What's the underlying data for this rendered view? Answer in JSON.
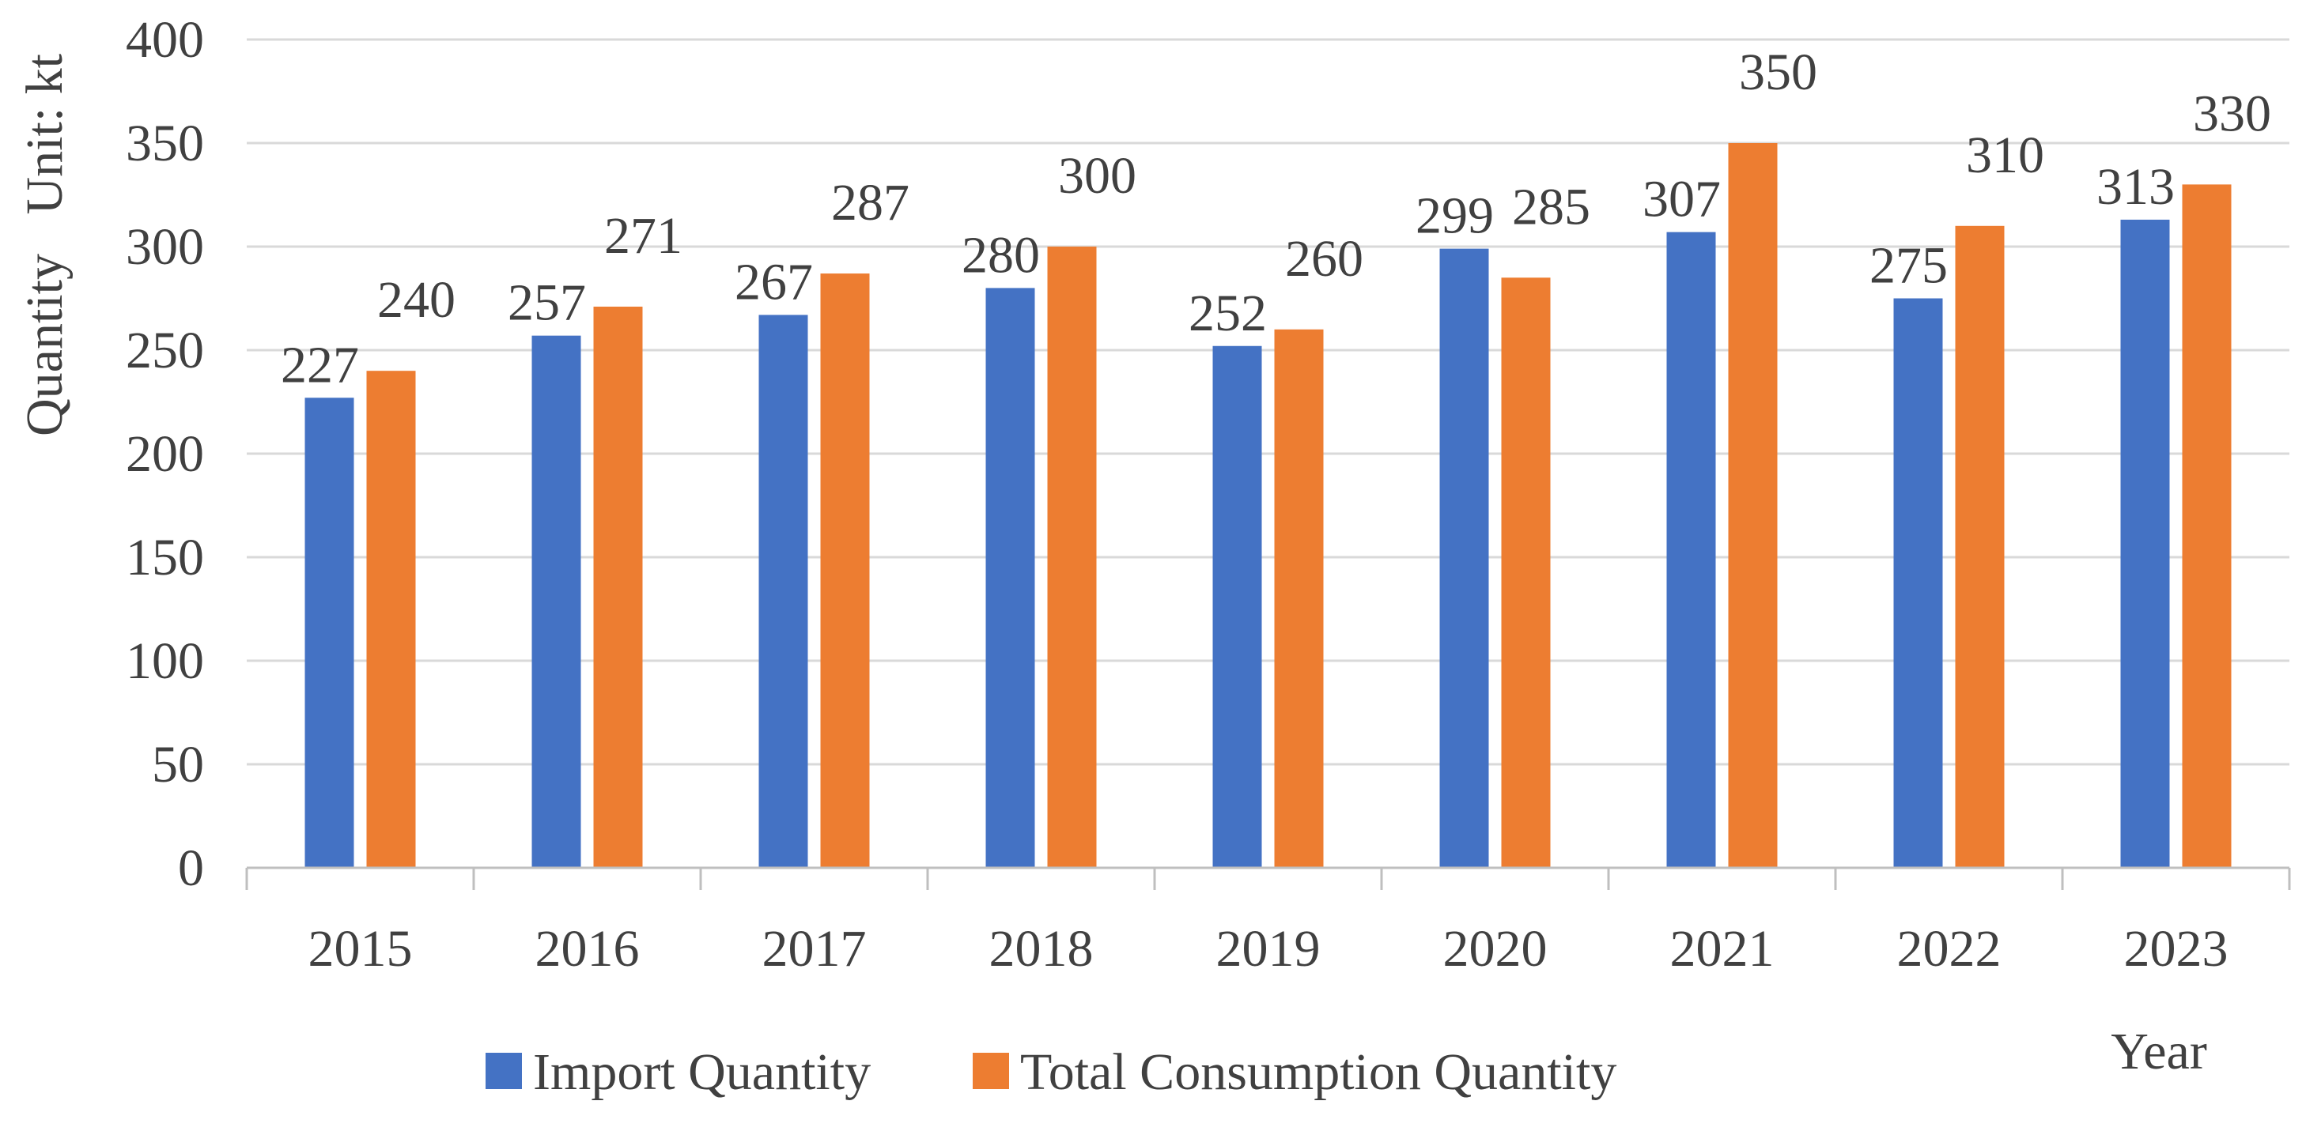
{
  "chart_data": {
    "type": "bar",
    "categories": [
      "2015",
      "2016",
      "2017",
      "2018",
      "2019",
      "2020",
      "2021",
      "2022",
      "2023"
    ],
    "series": [
      {
        "name": "Import Quantity",
        "color": "#4472c4",
        "values": [
          227,
          257,
          267,
          280,
          252,
          299,
          307,
          275,
          313
        ]
      },
      {
        "name": "Total Consumption Quantity",
        "color": "#ed7d31",
        "values": [
          240,
          271,
          287,
          300,
          260,
          285,
          350,
          310,
          330
        ]
      }
    ],
    "title": "",
    "xlabel": "Year",
    "ylabel": "Quantity   Unit: kt",
    "ylim": [
      0,
      400
    ],
    "yticks": [
      0,
      50,
      100,
      150,
      200,
      250,
      300,
      350,
      400
    ],
    "grid": true,
    "legend_position": "bottom"
  }
}
